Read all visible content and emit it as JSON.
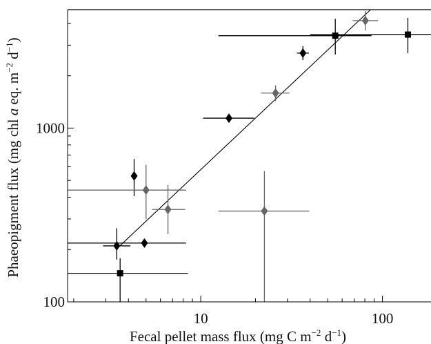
{
  "chart_data": {
    "type": "scatter",
    "x_scale": "log",
    "y_scale": "log",
    "xlim": [
      1.85,
      185
    ],
    "ylim": [
      100,
      4800
    ],
    "xticks": [
      {
        "value": 10,
        "label": "10"
      },
      {
        "value": 100,
        "label": "100"
      }
    ],
    "yticks": [
      {
        "value": 100,
        "label": "100"
      },
      {
        "value": 1000,
        "label": "1000"
      }
    ],
    "xlabel": {
      "prefix": "Fecal pellet mass flux (mg C m",
      "sup1": "−2",
      "middle": " d",
      "sup2": "−1",
      "suffix": ")"
    },
    "ylabel": {
      "prefix": "Phaeopigment flux (mg chl ",
      "italic": "a",
      "middle": " eq. m",
      "sup1": "−2",
      "middle2": " d",
      "sup2": "−1",
      "suffix": ")"
    },
    "grid": false,
    "legend": "none",
    "series": [
      {
        "marker": "diamond",
        "color": "#000000",
        "points": [
          {
            "x": 3.45,
            "y": 210,
            "xerr": [
              2.9,
              4.1
            ],
            "yerr": [
              175,
              265
            ]
          },
          {
            "x": 4.3,
            "y": 530,
            "xerr": null,
            "yerr": [
              405,
              665
            ]
          },
          {
            "x": 4.9,
            "y": 218,
            "xerr": null,
            "yerr": null
          },
          {
            "x": 14.3,
            "y": 1140,
            "xerr": [
              10.3,
              19.7
            ],
            "yerr": null
          },
          {
            "x": 36.5,
            "y": 2700,
            "xerr": [
              33.8,
              39.4
            ],
            "yerr": [
              2460,
              2960
            ]
          }
        ]
      },
      {
        "marker": "diamond",
        "color": "#666666",
        "points": [
          {
            "x": 5.0,
            "y": 440,
            "xerr": [
              1.85,
              8.3
            ],
            "yerr": [
              300,
              615
            ]
          },
          {
            "x": 6.6,
            "y": 340,
            "xerr": [
              5.4,
              8.2
            ],
            "yerr": [
              245,
              470
            ]
          },
          {
            "x": 22.4,
            "y": 333,
            "xerr": [
              12.5,
              39.5
            ],
            "yerr": [
              100,
              565
            ]
          },
          {
            "x": 25.8,
            "y": 1590,
            "xerr": [
              21.5,
              30.8
            ],
            "yerr": [
              1430,
              1760
            ]
          },
          {
            "x": 80.5,
            "y": 4150,
            "xerr": [
              68.5,
              94.5
            ],
            "yerr": [
              3640,
              4720
            ]
          }
        ]
      },
      {
        "marker": "square",
        "color": "#000000",
        "points": [
          {
            "x": 3.6,
            "y": 146,
            "xerr": [
              1.85,
              8.5
            ],
            "yerr": [
              100,
              178
            ]
          },
          {
            "x": 55.0,
            "y": 3400,
            "xerr": [
              12.5,
              87
            ],
            "yerr": [
              2650,
              4250
            ]
          },
          {
            "x": 138,
            "y": 3450,
            "xerr": [
              40,
              185
            ],
            "yerr": [
              2700,
              4300
            ]
          }
        ]
      }
    ],
    "extra_hlines": [
      {
        "y": 440,
        "x_from": 1.85,
        "x_to": 8.3,
        "color": "#666666"
      },
      {
        "y": 218,
        "x_from": 1.85,
        "x_to": 8.3,
        "color": "#000000"
      },
      {
        "y": 4800,
        "x_from": 1.85,
        "x_to": 185,
        "color": "#000000"
      }
    ],
    "fit_line": {
      "points": [
        [
          3.5,
          205
        ],
        [
          86,
          4800
        ]
      ],
      "color": "#000000"
    }
  }
}
